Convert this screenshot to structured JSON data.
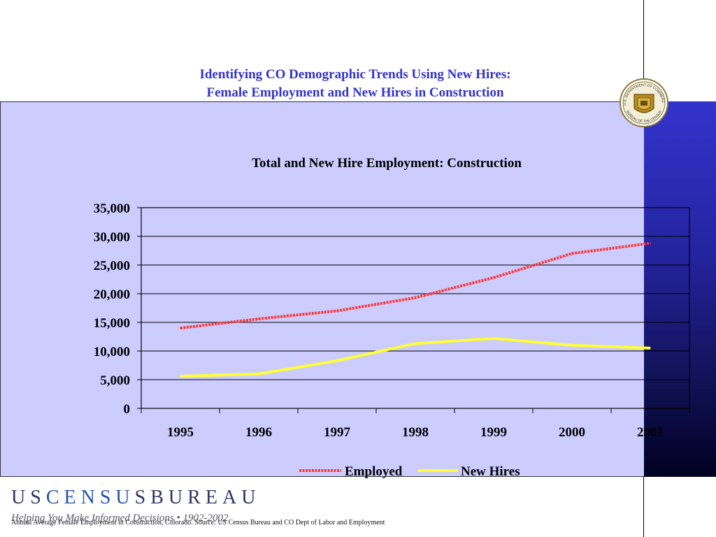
{
  "slide": {
    "title_line1": "Identifying CO Demographic Trends Using New Hires:",
    "title_line2": "Female Employment and New Hires in Construction"
  },
  "seal": {
    "text_top": "U.S. DEPARTMENT OF COMMERCE",
    "text_bottom": "BUREAU OF THE CENSUS"
  },
  "chart_data": {
    "type": "line",
    "title": "Total and New Hire Employment: Construction",
    "xlabel": "",
    "ylabel": "",
    "categories": [
      "1995",
      "1996",
      "1997",
      "1998",
      "1999",
      "2000",
      "2001"
    ],
    "series": [
      {
        "name": "Employed",
        "values": [
          14000,
          15600,
          17000,
          19300,
          22800,
          27000,
          28800
        ],
        "color": "#ff3333",
        "style": "dashed"
      },
      {
        "name": "New Hires",
        "values": [
          5600,
          6000,
          8300,
          11300,
          12200,
          11000,
          10500
        ],
        "color": "#ffff33",
        "style": "solid"
      }
    ],
    "ylim": [
      0,
      35000
    ],
    "y_ticks": [
      "35,000",
      "30,000",
      "25,000",
      "20,000",
      "15,000",
      "10,000",
      "5,000",
      "0"
    ],
    "grid": "horizontal",
    "legend": "bottom"
  },
  "footer": {
    "brand_parts": [
      "U",
      "S",
      "C",
      "E",
      "N",
      "S",
      "U",
      "S",
      "B",
      "U",
      "R",
      "E",
      "A",
      "U"
    ],
    "tagline": "Helping You Make Informed Decisions • 1902-2002",
    "source": "Annual Average Female Employment in Construction, Colorado. Source: US Census Bureau and CO Dept of Labor and Employment"
  },
  "colors": {
    "title": "#3333cc",
    "panel": "#ccccff",
    "band_top": "#3333cc",
    "band_bottom": "#000022"
  }
}
